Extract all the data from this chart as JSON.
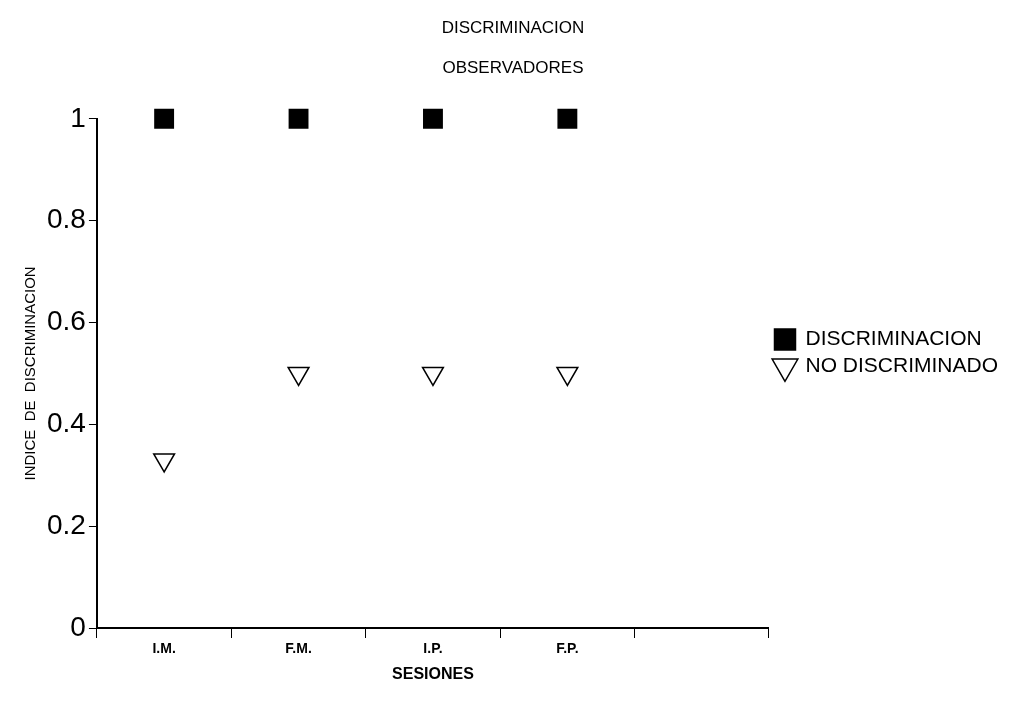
{
  "chart_data": {
    "type": "scatter",
    "title": "DISCRIMINACION",
    "subtitle": "OBSERVADORES",
    "xlabel": "SESIONES",
    "ylabel": "INDICE  DE  DISCRIMINACION",
    "categories": [
      "I.M.",
      "F.M.",
      "I.P.",
      "F.P.",
      null
    ],
    "series": [
      {
        "name": "DISCRIMINACION",
        "color": "#000000",
        "marker": "square",
        "values": [
          1,
          1,
          1,
          1,
          null
        ]
      },
      {
        "name": "NO DISCRIMINADO",
        "color": "#000000",
        "marker": "triangle",
        "values": [
          0.33,
          0.5,
          0.5,
          0.5,
          null
        ]
      }
    ],
    "ylim": [
      0,
      1
    ],
    "yticks": [
      0,
      0.2,
      0.4,
      0.6,
      0.8,
      1
    ],
    "grid": false,
    "legend": "right"
  }
}
